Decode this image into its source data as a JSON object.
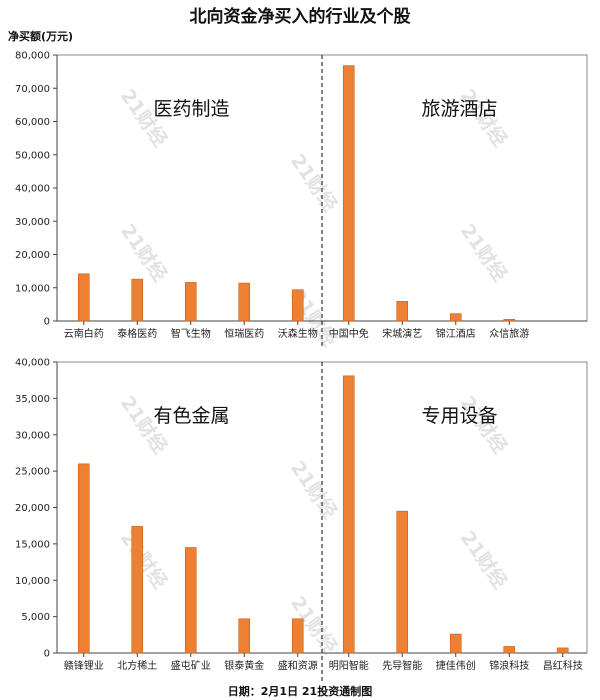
{
  "title": "北向资金净买入的行业及个股",
  "y_unit": "净买额(万元)",
  "footer": "日期：2月1日 21投资通制图",
  "watermark": "21财经",
  "colors": {
    "bar": "#ee8034",
    "bar_stroke": "#c2601a",
    "axis": "#444444",
    "divider": "#333333"
  },
  "chart_data": [
    {
      "type": "bar",
      "ylim": [
        0,
        80000
      ],
      "yticks": [
        0,
        10000,
        20000,
        30000,
        40000,
        50000,
        60000,
        70000,
        80000
      ],
      "ytick_labels": [
        "0",
        "10,000",
        "20,000",
        "30,000",
        "40,000",
        "50,000",
        "60,000",
        "70,000",
        "80,000"
      ],
      "groups": [
        {
          "label": "医药制造",
          "categories": [
            "云南白药",
            "泰格医药",
            "智飞生物",
            "恒瑞医药",
            "沃森生物"
          ],
          "values": [
            14200,
            12600,
            11600,
            11400,
            9400
          ]
        },
        {
          "label": "旅游酒店",
          "categories": [
            "中国中免",
            "宋城演艺",
            "锦江酒店",
            "众信旅游"
          ],
          "values": [
            76800,
            5900,
            2200,
            500
          ]
        }
      ]
    },
    {
      "type": "bar",
      "ylim": [
        0,
        40000
      ],
      "yticks": [
        0,
        5000,
        10000,
        15000,
        20000,
        25000,
        30000,
        35000,
        40000
      ],
      "ytick_labels": [
        "0",
        "5,000",
        "10,000",
        "15,000",
        "20,000",
        "25,000",
        "30,000",
        "35,000",
        "40,000"
      ],
      "groups": [
        {
          "label": "有色金属",
          "categories": [
            "赣锋锂业",
            "北方稀土",
            "盛屯矿业",
            "银泰黄金",
            "盛和资源"
          ],
          "values": [
            26000,
            17400,
            14500,
            4700,
            4700
          ]
        },
        {
          "label": "专用设备",
          "categories": [
            "明阳智能",
            "先导智能",
            "捷佳伟创",
            "锦浪科技",
            "昌红科技"
          ],
          "values": [
            38100,
            19500,
            2600,
            900,
            700
          ]
        }
      ]
    }
  ]
}
